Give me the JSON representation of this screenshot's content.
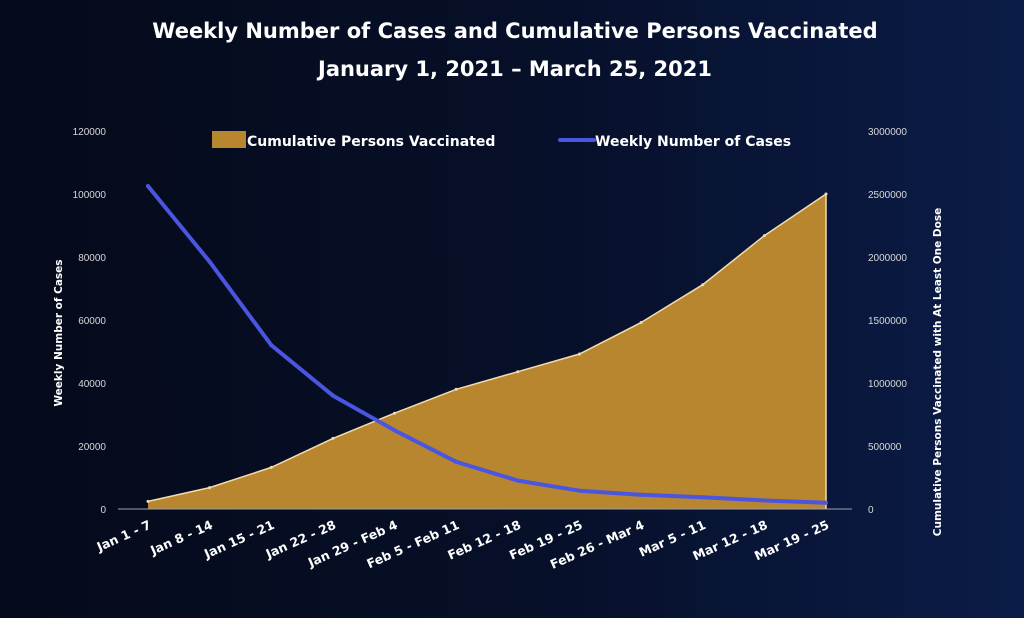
{
  "colors": {
    "background": "#07102a",
    "area_fill": "#b98630",
    "area_stroke": "#f2ddb0",
    "line": "#4a55e0",
    "axis": "#9aa0b0",
    "text": "#ffffff"
  },
  "chart_data": {
    "type": "area",
    "title": "Weekly Number of Cases and Cumulative Persons Vaccinated",
    "subtitle": "January 1, 2021 – March 25, 2021",
    "categories": [
      "Jan 1 - 7",
      "Jan 8 - 14",
      "Jan 15 - 21",
      "Jan 22 - 28",
      "Jan 29 - Feb 4",
      "Feb 5 - Feb 11",
      "Feb 12 - 18",
      "Feb 19 - 25",
      "Feb 26 - Mar 4",
      "Mar 5 - 11",
      "Mar 12 - 18",
      "Mar 19 - 25"
    ],
    "y_left": {
      "label": "Weekly Number of Cases",
      "lim": [
        0,
        120000
      ],
      "ticks": [
        "0",
        "20000",
        "40000",
        "60000",
        "80000",
        "100000",
        "120000"
      ]
    },
    "y_right": {
      "label": "Cumulative Persons Vaccinated with At Least One Dose",
      "lim": [
        0,
        3000000
      ],
      "ticks": [
        "0",
        "500000",
        "1000000",
        "1500000",
        "2000000",
        "2500000",
        "3000000"
      ]
    },
    "series": [
      {
        "name": "Cumulative Persons Vaccinated",
        "type": "area",
        "axis": "right",
        "values": [
          60000,
          170000,
          330000,
          560000,
          760000,
          950000,
          1090000,
          1230000,
          1480000,
          1780000,
          2170000,
          2500000
        ]
      },
      {
        "name": "Weekly Number of Cases",
        "type": "line",
        "axis": "left",
        "values": [
          102500,
          78500,
          52000,
          36000,
          25000,
          15000,
          9000,
          5800,
          4500,
          3700,
          2700,
          2000
        ]
      }
    ],
    "legend": "top",
    "grid": false
  }
}
